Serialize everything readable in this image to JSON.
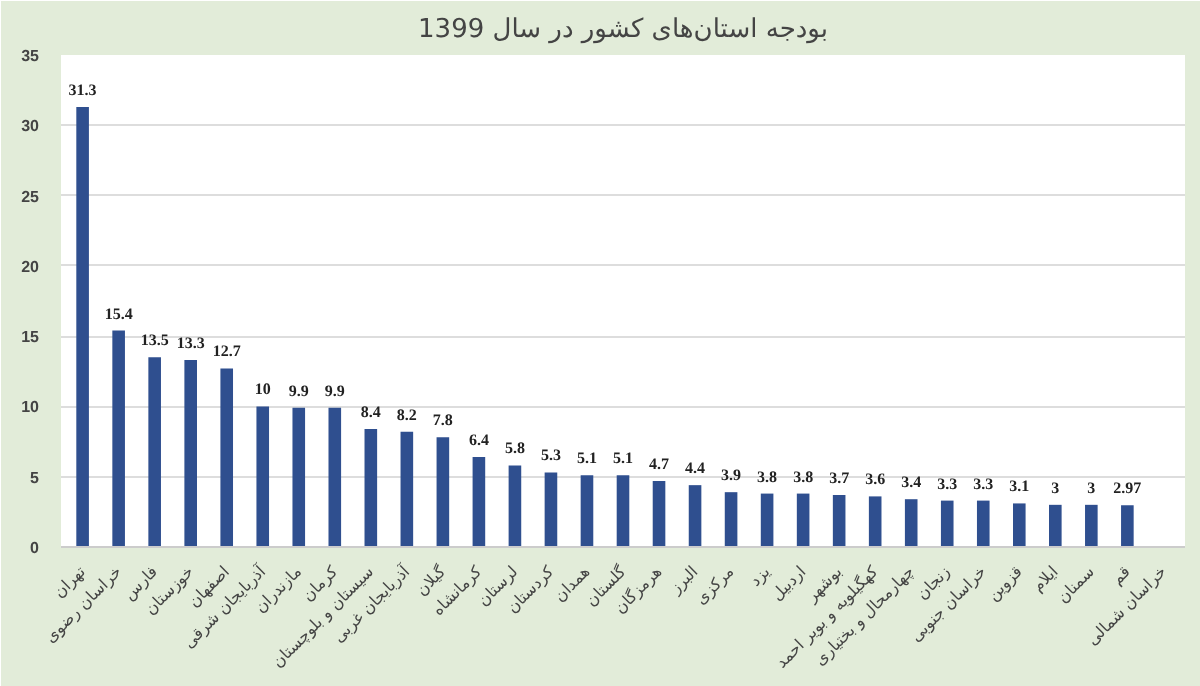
{
  "chart_data": {
    "type": "bar",
    "title": "بودجه استان‌های کشور در سال 1399",
    "categories": [
      "تهران",
      "خراسان رضوی",
      "فارس",
      "خوزستان",
      "اصفهان",
      "آذربایجان شرقی",
      "مازندران",
      "کرمان",
      "سیستان و بلوچستان",
      "آذربایجان غربی",
      "گیلان",
      "کرمانشاه",
      "لرستان",
      "کردستان",
      "همدان",
      "گلستان",
      "هرمزگان",
      "البرز",
      "مرکزی",
      "یزد",
      "اردبیل",
      "بوشهر",
      "کهگیلویه و بویر احمد",
      "چهارمحال و بختیاری",
      "زنجان",
      "خراسان جنوبی",
      "قزوین",
      "ایلام",
      "سمنان",
      "قم",
      "خراسان شمالی"
    ],
    "values": [
      31.3,
      15.4,
      13.5,
      13.3,
      12.7,
      10,
      9.9,
      9.9,
      8.4,
      8.2,
      7.8,
      6.4,
      5.8,
      5.3,
      5.1,
      5.1,
      4.7,
      4.4,
      3.9,
      3.8,
      3.8,
      3.7,
      3.6,
      3.4,
      3.3,
      3.3,
      3.1,
      3,
      3,
      2.97,
      null
    ],
    "color": "#2f4f8f",
    "ylim": [
      0,
      35
    ],
    "yticks": [
      0,
      5,
      10,
      15,
      20,
      25,
      30,
      35
    ],
    "grid": "y",
    "data_labels": true
  }
}
